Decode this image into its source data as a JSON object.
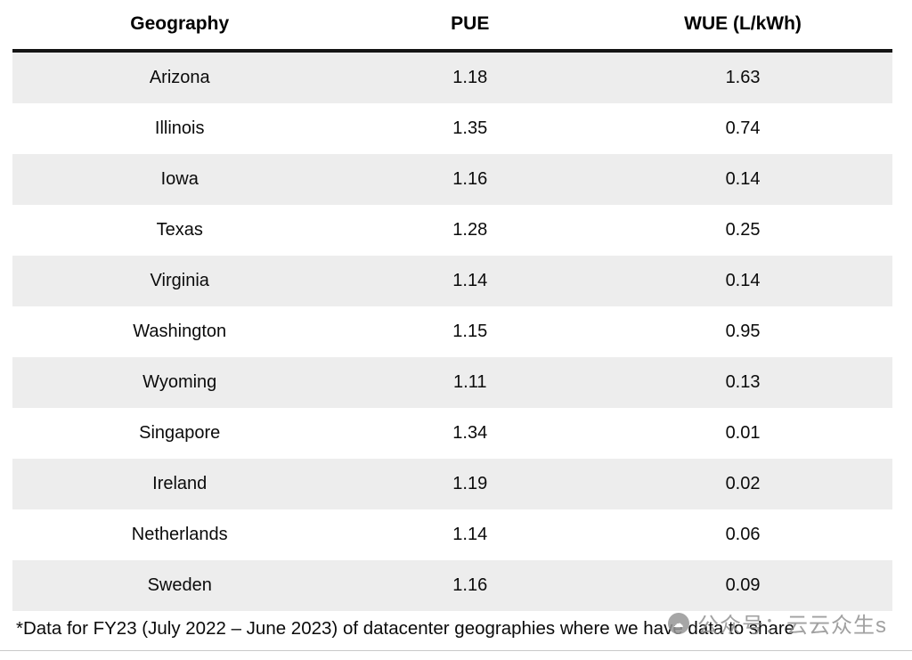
{
  "chart_data": {
    "type": "table",
    "title": "",
    "columns": [
      "Geography",
      "PUE",
      "WUE (L/kWh)"
    ],
    "rows": [
      [
        "Arizona",
        "1.18",
        "1.63"
      ],
      [
        "Illinois",
        "1.35",
        "0.74"
      ],
      [
        "Iowa",
        "1.16",
        "0.14"
      ],
      [
        "Texas",
        "1.28",
        "0.25"
      ],
      [
        "Virginia",
        "1.14",
        "0.14"
      ],
      [
        "Washington",
        "1.15",
        "0.95"
      ],
      [
        "Wyoming",
        "1.11",
        "0.13"
      ],
      [
        "Singapore",
        "1.34",
        "0.01"
      ],
      [
        "Ireland",
        "1.19",
        "0.02"
      ],
      [
        "Netherlands",
        "1.14",
        "0.06"
      ],
      [
        "Sweden",
        "1.16",
        "0.09"
      ]
    ],
    "layout": {
      "striped_rows": "odd",
      "stripe_color": "#ededed",
      "header_rule_color": "#151515"
    }
  },
  "footnote": "*Data for FY23 (July 2022 – June 2023) of datacenter geographies where we have data to share",
  "watermark": {
    "text": "公众号：云云众生s",
    "icon_glyph": "☁"
  }
}
